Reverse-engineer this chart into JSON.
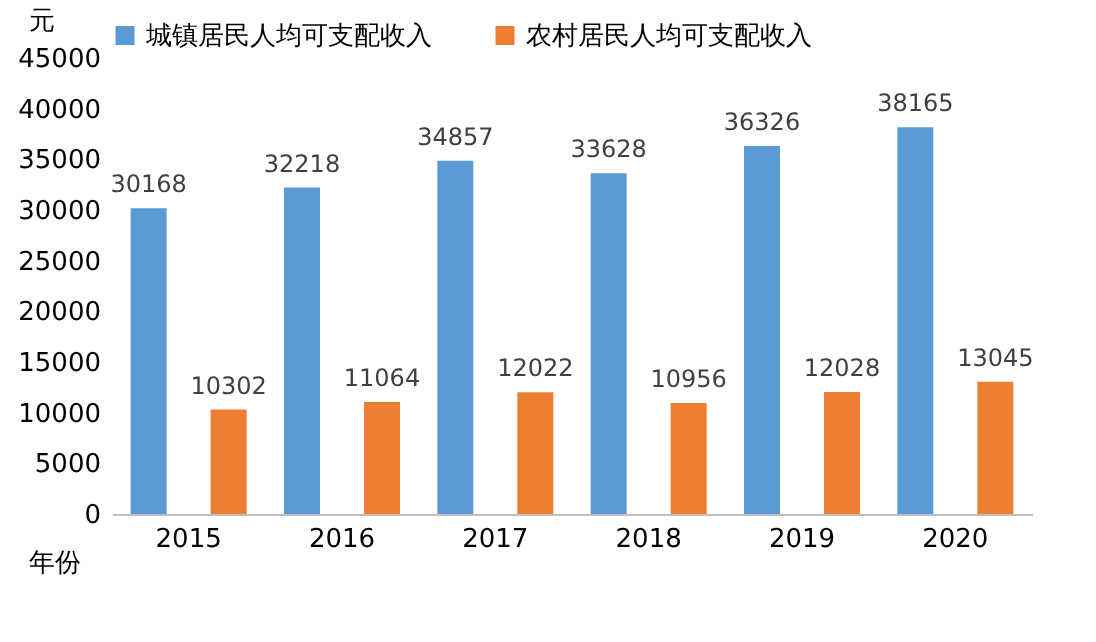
{
  "chart_data": {
    "type": "bar",
    "ylabel": "元",
    "xlabel": "年份",
    "categories": [
      "2015",
      "2016",
      "2017",
      "2018",
      "2019",
      "2020"
    ],
    "series": [
      {
        "name": "城镇居民人均可支配收入",
        "color": "#5b9bd5",
        "values": [
          30168,
          32218,
          34857,
          33628,
          36326,
          38165
        ]
      },
      {
        "name": "农村居民人均可支配收入",
        "color": "#ed7d31",
        "values": [
          10302,
          11064,
          12022,
          10956,
          12028,
          13045
        ]
      }
    ],
    "ylim": [
      0,
      45000
    ],
    "yticks": [
      0,
      5000,
      10000,
      15000,
      20000,
      25000,
      30000,
      35000,
      40000,
      45000
    ],
    "data_labels": true,
    "legend": "top",
    "grid": false
  }
}
